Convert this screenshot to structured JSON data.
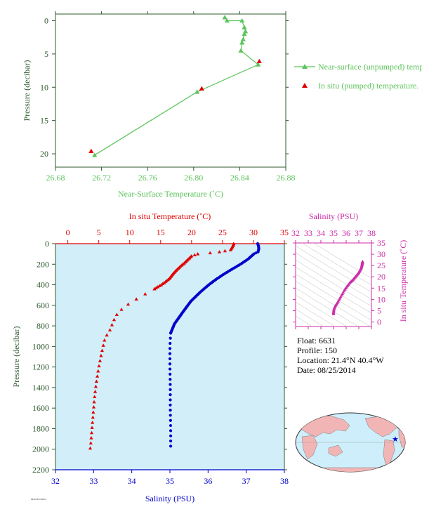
{
  "colors": {
    "axis_green": "#2e5a2e",
    "series_green": "#5cc45c",
    "pumped_red": "#e00000",
    "temp_red": "#e00000",
    "salinity_blue": "#0000cc",
    "magenta": "#cc2ea8",
    "panel_bg": "#d2eef8",
    "land": "#f2b5b5",
    "ocean": "#cdeefa"
  },
  "info": {
    "float": "Float:  6631",
    "profile": "Profile:  150",
    "location": "Location:  21.4°N  40.4°W",
    "date": "Date:  08/25/2014"
  },
  "footer_tag": "PRINTED 0000/0",
  "chart_data": [
    {
      "type": "line",
      "xlabel": "Near-Surface Temperature (˚C)",
      "ylabel": "Pressure (decibar)",
      "xlim": [
        26.68,
        26.88
      ],
      "ylim": [
        22,
        -1
      ],
      "xticks": [
        "26.68",
        "26.72",
        "26.76",
        "26.80",
        "26.84",
        "26.88"
      ],
      "yticks": [
        "0",
        "5",
        "10",
        "15",
        "20"
      ],
      "legend_position": "right",
      "series": [
        {
          "name": "Near-surface (unpumped) temperature.",
          "marker": "triangle",
          "points": [
            [
              26.827,
              -0.5
            ],
            [
              26.829,
              0.0
            ],
            [
              26.842,
              0.0
            ],
            [
              26.844,
              1.0
            ],
            [
              26.845,
              1.6
            ],
            [
              26.844,
              2.0
            ],
            [
              26.843,
              2.8
            ],
            [
              26.842,
              3.3
            ],
            [
              26.841,
              4.5
            ],
            [
              26.856,
              6.6
            ],
            [
              26.803,
              10.7
            ],
            [
              26.714,
              20.2
            ]
          ]
        },
        {
          "name": "In situ (pumped) temperature.",
          "marker": "triangle",
          "points": [
            [
              26.857,
              6.1
            ],
            [
              26.807,
              10.2
            ],
            [
              26.711,
              19.6
            ]
          ]
        }
      ]
    },
    {
      "type": "scatter",
      "xlabel_bottom": "Salinity (PSU)",
      "xlabel_top": "In situ Temperature (˚C)",
      "ylabel": "Pressure (decibar)",
      "salinity_lim": [
        32,
        38
      ],
      "temperature_lim": [
        -2,
        35
      ],
      "ylim": [
        2200,
        0
      ],
      "salinity_ticks": [
        "32",
        "33",
        "34",
        "35",
        "36",
        "37",
        "38"
      ],
      "temperature_ticks": [
        "0",
        "5",
        "10",
        "15",
        "20",
        "25",
        "30",
        "35"
      ],
      "yticks": [
        "0",
        "200",
        "400",
        "600",
        "800",
        "1000",
        "1200",
        "1400",
        "1600",
        "1800",
        "2000",
        "2200"
      ],
      "series": [
        {
          "name": "Temperature",
          "axis": "top",
          "profile": [
            [
              26.8,
              0
            ],
            [
              26.7,
              20
            ],
            [
              26.3,
              60
            ],
            [
              24.5,
              80
            ],
            [
              23.0,
              90
            ],
            [
              21.0,
              100
            ],
            [
              20.0,
              120
            ],
            [
              19.3,
              160
            ],
            [
              18.8,
              190
            ],
            [
              18.2,
              220
            ],
            [
              17.5,
              260
            ],
            [
              16.9,
              300
            ],
            [
              16.4,
              340
            ],
            [
              15.8,
              370
            ],
            [
              15.1,
              400
            ],
            [
              14.0,
              440
            ],
            [
              12.5,
              490
            ],
            [
              10.5,
              560
            ],
            [
              9.0,
              620
            ],
            [
              8.0,
              680
            ],
            [
              7.3,
              760
            ],
            [
              6.9,
              830
            ],
            [
              6.0,
              920
            ],
            [
              5.5,
              1050
            ],
            [
              5.0,
              1200
            ],
            [
              4.6,
              1350
            ],
            [
              4.3,
              1500
            ],
            [
              4.1,
              1650
            ],
            [
              3.9,
              1800
            ],
            [
              3.7,
              1950
            ],
            [
              3.6,
              2000
            ]
          ]
        },
        {
          "name": "Salinity",
          "axis": "bottom",
          "profile": [
            [
              37.3,
              0
            ],
            [
              37.32,
              20
            ],
            [
              37.33,
              50
            ],
            [
              37.31,
              80
            ],
            [
              37.2,
              100
            ],
            [
              37.05,
              150
            ],
            [
              36.85,
              200
            ],
            [
              36.62,
              250
            ],
            [
              36.4,
              300
            ],
            [
              36.2,
              350
            ],
            [
              36.02,
              400
            ],
            [
              35.8,
              470
            ],
            [
              35.55,
              560
            ],
            [
              35.35,
              660
            ],
            [
              35.12,
              780
            ],
            [
              35.02,
              870
            ],
            [
              35.0,
              1000
            ],
            [
              35.0,
              1200
            ],
            [
              35.01,
              1400
            ],
            [
              35.01,
              1600
            ],
            [
              35.02,
              1800
            ],
            [
              35.02,
              2000
            ]
          ]
        }
      ]
    },
    {
      "type": "scatter",
      "xlabel_top": "Salinity (PSU)",
      "ylabel_right": "In situ Temperature (˚C)",
      "xlim": [
        32,
        38
      ],
      "ylim": [
        -2,
        35
      ],
      "xticks": [
        "32",
        "33",
        "34",
        "35",
        "36",
        "37",
        "38"
      ],
      "yticks": [
        "0",
        "5",
        "10",
        "15",
        "20",
        "25",
        "30",
        "35"
      ],
      "points": [
        [
          35.0,
          3.6
        ],
        [
          35.0,
          4.5
        ],
        [
          35.05,
          6.0
        ],
        [
          35.15,
          7.3
        ],
        [
          35.3,
          8.5
        ],
        [
          35.5,
          10.5
        ],
        [
          35.7,
          12.5
        ],
        [
          35.9,
          14.5
        ],
        [
          36.1,
          16.0
        ],
        [
          36.3,
          17.5
        ],
        [
          36.5,
          18.5
        ],
        [
          36.65,
          19.5
        ],
        [
          36.8,
          20.5
        ],
        [
          36.95,
          21.5
        ],
        [
          37.05,
          22.5
        ],
        [
          37.15,
          23.5
        ],
        [
          37.22,
          24.5
        ],
        [
          37.26,
          25.5
        ],
        [
          37.28,
          26.3
        ],
        [
          37.3,
          26.8
        ]
      ]
    }
  ]
}
